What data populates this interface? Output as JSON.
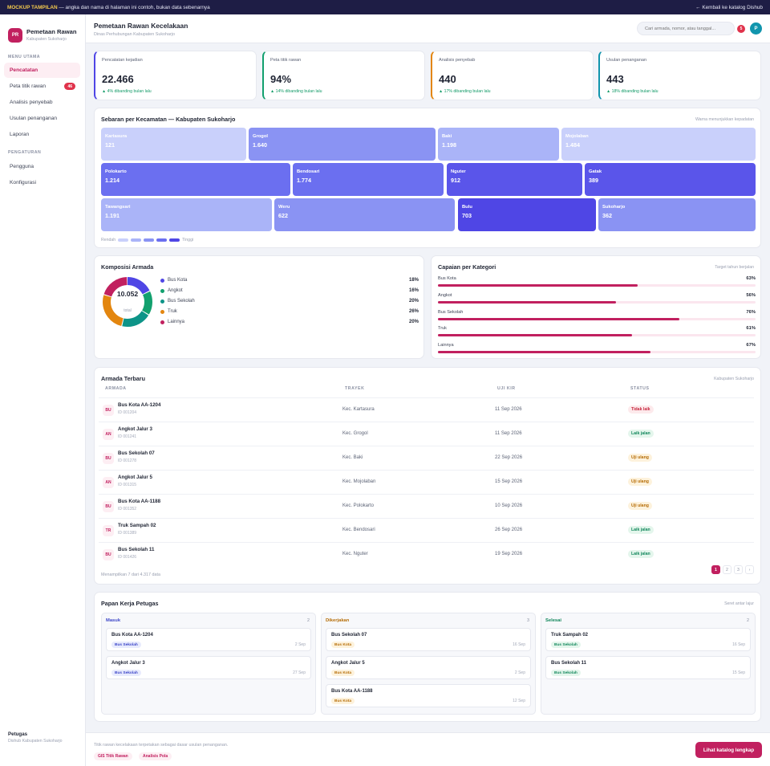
{
  "banner": {
    "tag": "MOCKUP TAMPILAN",
    "text": " — angka dan nama di halaman ini contoh, bukan data sebenarnya",
    "back_link": "← Kembali ke katalog Dishub"
  },
  "brand": {
    "logo": "PR",
    "title": "Pemetaan Rawan",
    "subtitle": "Kabupaten Sukoharjo"
  },
  "sidebar": {
    "section_main": "MENU UTAMA",
    "items": [
      {
        "label": "Pencatatan",
        "active": true
      },
      {
        "label": "Peta titik rawan",
        "badge": "46"
      },
      {
        "label": "Analisis penyebab"
      },
      {
        "label": "Usulan penanganan"
      },
      {
        "label": "Laporan"
      }
    ],
    "section_settings": "PENGATURAN",
    "settings": [
      {
        "label": "Pengguna"
      },
      {
        "label": "Konfigurasi"
      }
    ],
    "footer_title": "Petugas",
    "footer_sub": "Dishub Kabupaten Sukoharjo"
  },
  "header": {
    "title": "Pemetaan Rawan Kecelakaan",
    "subtitle": "Dinas Perhubungan Kabupaten Sukoharjo",
    "search_placeholder": "Cari armada, nomor, atau tanggal...",
    "notif_count": "5",
    "avatar": "P"
  },
  "kpis": [
    {
      "label": "Pencatatan kejadian",
      "value": "22.466",
      "delta": "▲ 4% dibanding bulan lalu",
      "accent": "#4f46e5"
    },
    {
      "label": "Peta titik rawan",
      "value": "94%",
      "delta": "▲ 14% dibanding bulan lalu",
      "accent": "#12a06e"
    },
    {
      "label": "Analisis penyebab",
      "value": "440",
      "delta": "▲ 17% dibanding bulan lalu",
      "accent": "#e3860f"
    },
    {
      "label": "Usulan penanganan",
      "value": "443",
      "delta": "▲ 18% dibanding bulan lalu",
      "accent": "#1195ad"
    }
  ],
  "treemap": {
    "title": "Sebaran per Kecamatan — Kabupaten Sukoharjo",
    "note": "Warna menunjukkan kepadatan",
    "legend_low": "Rendah",
    "legend_high": "Tinggi",
    "legend_colors": [
      "#c9d0fb",
      "#aab4f8",
      "#8a93f3",
      "#6b6ff0",
      "#4f46e5"
    ],
    "tiles": [
      {
        "name": "Kartasura",
        "value": "121",
        "color": "#c9d0fb"
      },
      {
        "name": "Grogol",
        "value": "1.640",
        "color": "#8a93f3"
      },
      {
        "name": "Baki",
        "value": "1.198",
        "color": "#aab4f8"
      },
      {
        "name": "Mojolaban",
        "value": "1.484",
        "color": "#c9d0fb"
      },
      {
        "name": "Polokarto",
        "value": "1.214",
        "color": "#6b6ff0"
      },
      {
        "name": "Bendosari",
        "value": "1.774",
        "color": "#6b6ff0"
      },
      {
        "name": "Nguter",
        "value": "912",
        "color": "#5a55ea"
      },
      {
        "name": "Gatak",
        "value": "389",
        "color": "#5a55ea"
      },
      {
        "name": "Tawangsari",
        "value": "1.191",
        "color": "#aab4f8"
      },
      {
        "name": "Weru",
        "value": "622",
        "color": "#8a93f3"
      },
      {
        "name": "Bulu",
        "value": "703",
        "color": "#4f46e5"
      },
      {
        "name": "Sukoharjo",
        "value": "362",
        "color": "#8a93f3"
      }
    ]
  },
  "composition": {
    "title": "Komposisi Armada",
    "total": "10.052",
    "total_label": "total",
    "items": [
      {
        "label": "Bus Kota",
        "pct": "18%",
        "share": 18,
        "color": "#4f46e5"
      },
      {
        "label": "Angkot",
        "pct": "16%",
        "share": 16,
        "color": "#12a06e"
      },
      {
        "label": "Bus Sekolah",
        "pct": "20%",
        "share": 20,
        "color": "#0d9488"
      },
      {
        "label": "Truk",
        "pct": "26%",
        "share": 26,
        "color": "#e3860f"
      },
      {
        "label": "Lainnya",
        "pct": "20%",
        "share": 20,
        "color": "#c1205f"
      }
    ]
  },
  "achievement": {
    "title": "Capaian per Kategori",
    "note": "Target tahun berjalan",
    "items": [
      {
        "label": "Bus Kota",
        "pct": "63%",
        "value": 63
      },
      {
        "label": "Angkot",
        "pct": "56%",
        "value": 56
      },
      {
        "label": "Bus Sekolah",
        "pct": "76%",
        "value": 76
      },
      {
        "label": "Truk",
        "pct": "61%",
        "value": 61
      },
      {
        "label": "Lainnya",
        "pct": "67%",
        "value": 67
      }
    ]
  },
  "fleet": {
    "title": "Armada Terbaru",
    "note": "Kabupaten Sukoharjo",
    "columns": [
      "ARMADA",
      "TRAYEK",
      "UJI KIR",
      "STATUS"
    ],
    "rows": [
      {
        "code": "BU",
        "name": "Bus Kota AA-1204",
        "id": "ID 001204",
        "route": "Kec. Kartasura",
        "date": "11 Sep 2026",
        "status": "Tidak laik",
        "tone": "red"
      },
      {
        "code": "AN",
        "name": "Angkot Jalur 3",
        "id": "ID 001241",
        "route": "Kec. Grogol",
        "date": "11 Sep 2026",
        "status": "Laik jalan",
        "tone": "green"
      },
      {
        "code": "BU",
        "name": "Bus Sekolah 07",
        "id": "ID 001278",
        "route": "Kec. Baki",
        "date": "22 Sep 2026",
        "status": "Uji ulang",
        "tone": "amber"
      },
      {
        "code": "AN",
        "name": "Angkot Jalur 5",
        "id": "ID 001315",
        "route": "Kec. Mojolaban",
        "date": "15 Sep 2026",
        "status": "Uji ulang",
        "tone": "amber"
      },
      {
        "code": "BU",
        "name": "Bus Kota AA-1188",
        "id": "ID 001352",
        "route": "Kec. Polokarto",
        "date": "10 Sep 2026",
        "status": "Uji ulang",
        "tone": "amber"
      },
      {
        "code": "TR",
        "name": "Truk Sampah 02",
        "id": "ID 001389",
        "route": "Kec. Bendosari",
        "date": "26 Sep 2026",
        "status": "Laik jalan",
        "tone": "green"
      },
      {
        "code": "BU",
        "name": "Bus Sekolah 11",
        "id": "ID 001426",
        "route": "Kec. Nguter",
        "date": "19 Sep 2026",
        "status": "Laik jalan",
        "tone": "green"
      }
    ],
    "summary": "Menampilkan 7 dari 4.317 data",
    "pages": [
      "1",
      "2",
      "3",
      "›"
    ]
  },
  "board": {
    "title": "Papan Kerja Petugas",
    "note": "Seret antar lajur",
    "lanes": [
      {
        "title": "Masuk",
        "count": "2",
        "color": "#3d46c8",
        "cards": [
          {
            "title": "Bus Kota AA-1204",
            "tag": "Bus Sekolah",
            "date": "2 Sep",
            "tone": "blue"
          },
          {
            "title": "Angkot Jalur 3",
            "tag": "Bus Sekolah",
            "date": "27 Sep",
            "tone": "blue"
          }
        ]
      },
      {
        "title": "Dikerjakan",
        "count": "3",
        "color": "#b66d07",
        "cards": [
          {
            "title": "Bus Sekolah 07",
            "tag": "Bus Kota",
            "date": "16 Sep",
            "tone": "amber"
          },
          {
            "title": "Angkot Jalur 5",
            "tag": "Bus Kota",
            "date": "2 Sep",
            "tone": "amber"
          },
          {
            "title": "Bus Kota AA-1188",
            "tag": "Bus Kota",
            "date": "12 Sep",
            "tone": "amber"
          }
        ]
      },
      {
        "title": "Selesai",
        "count": "2",
        "color": "#12875c",
        "cards": [
          {
            "title": "Truk Sampah 02",
            "tag": "Bus Sekolah",
            "date": "16 Sep",
            "tone": "green"
          },
          {
            "title": "Bus Sekolah 11",
            "tag": "Bus Sekolah",
            "date": "15 Sep",
            "tone": "green"
          }
        ]
      }
    ]
  },
  "footer": {
    "note": "Titik rawan kecelakaan terpetakan sebagai dasar usulan penanganan.",
    "chips": [
      "GIS Titik Rawan",
      "Analisis Pola"
    ],
    "cta": "Lihat katalog lengkap"
  }
}
